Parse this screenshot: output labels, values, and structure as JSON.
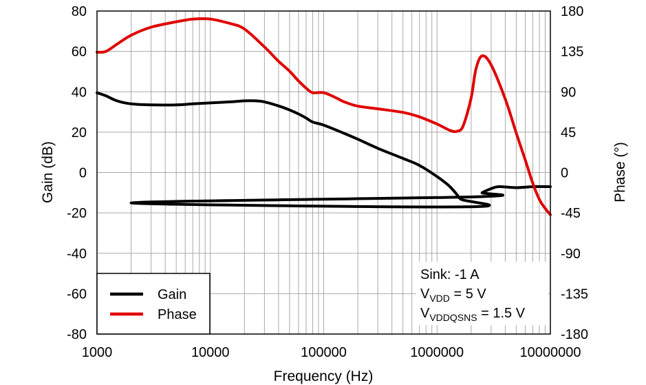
{
  "chart_data": {
    "type": "line",
    "title": "",
    "xlabel": "Frequency (Hz)",
    "ylabel": "Gain (dB)",
    "y2label": "Phase (°)",
    "xscale": "log",
    "xlim": [
      1000,
      10000000
    ],
    "ylim": [
      -80,
      80
    ],
    "y2lim": [
      -180,
      180
    ],
    "grid": true,
    "x_ticks": [
      "1000",
      "10000",
      "100000",
      "1000000",
      "10000000"
    ],
    "y_ticks": [
      "80",
      "60",
      "40",
      "20",
      "0",
      "-20",
      "-40",
      "-60",
      "-80"
    ],
    "y2_ticks": [
      "180",
      "135",
      "90",
      "45",
      "0",
      "-45",
      "-90",
      "-135",
      "-180"
    ],
    "legend": {
      "placement": "bottom-left",
      "entries": [
        {
          "label": "Gain",
          "color": "#000000"
        },
        {
          "label": "Phase",
          "color": "#e00000"
        }
      ]
    },
    "annotation": {
      "line1": "Sink: -1 A",
      "line2_main": "V",
      "line2_sub": "VDD",
      "line2_rest": " = 5 V",
      "line3_main": "V",
      "line3_sub": "VDDQSNS",
      "line3_rest": " = 1.5 V",
      "placement": "bottom-right"
    },
    "series": [
      {
        "name": "Gain",
        "axis": "left",
        "color": "#000000",
        "points": [
          [
            1000,
            39.5
          ],
          [
            1200,
            38
          ],
          [
            1500,
            35.5
          ],
          [
            2000,
            34
          ],
          [
            3000,
            33.5
          ],
          [
            5000,
            33.5
          ],
          [
            7000,
            34
          ],
          [
            10000,
            34.5
          ],
          [
            15000,
            35
          ],
          [
            20000,
            35.5
          ],
          [
            25000,
            35.5
          ],
          [
            30000,
            35
          ],
          [
            40000,
            33
          ],
          [
            50000,
            31
          ],
          [
            60000,
            29
          ],
          [
            70000,
            27
          ],
          [
            80000,
            25
          ],
          [
            100000,
            23.5
          ],
          [
            150000,
            19.5
          ],
          [
            200000,
            16.5
          ],
          [
            300000,
            12
          ],
          [
            500000,
            7
          ],
          [
            700000,
            3.5
          ],
          [
            1000000,
            -2
          ],
          [
            1300000,
            -7
          ],
          [
            1600000,
            -13
          ],
          [
            1800000,
            -17
          ],
          [
            2000,
            -15
          ],
          [
            2200000,
            -12
          ],
          [
            2500000,
            -10
          ],
          [
            3000000,
            -8
          ],
          [
            3500000,
            -7
          ],
          [
            5000000,
            -7.5
          ],
          [
            7000000,
            -7
          ],
          [
            10000000,
            -7
          ]
        ]
      },
      {
        "name": "Phase",
        "axis": "right",
        "color": "#e00000",
        "points": [
          [
            1000,
            134
          ],
          [
            1200,
            135
          ],
          [
            1500,
            143
          ],
          [
            2000,
            153
          ],
          [
            3000,
            162
          ],
          [
            5000,
            168
          ],
          [
            7000,
            171
          ],
          [
            10000,
            171
          ],
          [
            15000,
            166
          ],
          [
            20000,
            160
          ],
          [
            30000,
            140
          ],
          [
            40000,
            124
          ],
          [
            50000,
            113
          ],
          [
            60000,
            102
          ],
          [
            70000,
            94
          ],
          [
            80000,
            89
          ],
          [
            100000,
            89
          ],
          [
            130000,
            83
          ],
          [
            150000,
            79
          ],
          [
            200000,
            74
          ],
          [
            300000,
            71
          ],
          [
            500000,
            67
          ],
          [
            700000,
            62
          ],
          [
            1000000,
            54
          ],
          [
            1300000,
            47
          ],
          [
            1500000,
            46
          ],
          [
            1700000,
            52
          ],
          [
            2000000,
            83
          ],
          [
            2200000,
            115
          ],
          [
            2500000,
            130
          ],
          [
            3000000,
            120
          ],
          [
            4000000,
            82
          ],
          [
            5000000,
            44
          ],
          [
            6000000,
            14
          ],
          [
            7000000,
            -12
          ],
          [
            8000000,
            -30
          ],
          [
            9000000,
            -40
          ],
          [
            10000000,
            -47
          ]
        ]
      }
    ]
  }
}
